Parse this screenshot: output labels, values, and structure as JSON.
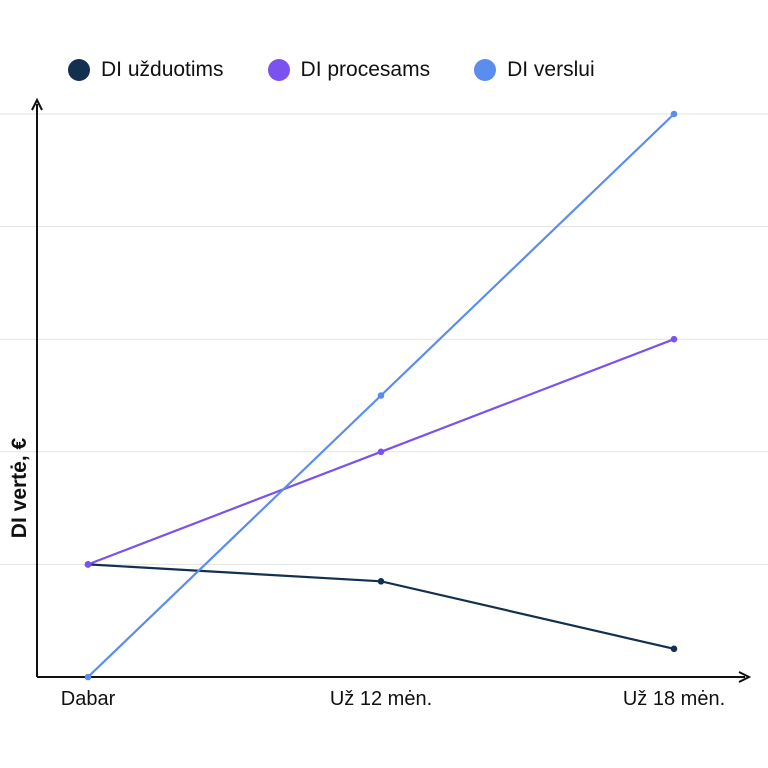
{
  "legend": {
    "items": [
      {
        "label": "DI užduotims",
        "color": "#14304F"
      },
      {
        "label": "DI procesams",
        "color": "#7B52F0"
      },
      {
        "label": "DI verslui",
        "color": "#5B8DEF"
      }
    ]
  },
  "chart_data": {
    "type": "line",
    "title": "",
    "xlabel": "",
    "ylabel": "DI vertė, €",
    "categories": [
      "Dabar",
      "Už 12 mėn.",
      "Už 18 mėn."
    ],
    "ylim": [
      0,
      5
    ],
    "grid": true,
    "legend_position": "top",
    "series": [
      {
        "name": "DI užduotims",
        "color": "#14304F",
        "values": [
          1.0,
          0.85,
          0.25
        ]
      },
      {
        "name": "DI procesams",
        "color": "#7B52F0",
        "values": [
          1.0,
          2.0,
          3.0
        ]
      },
      {
        "name": "DI verslui",
        "color": "#5B8DEF",
        "values": [
          0.0,
          2.5,
          5.0
        ]
      }
    ]
  }
}
